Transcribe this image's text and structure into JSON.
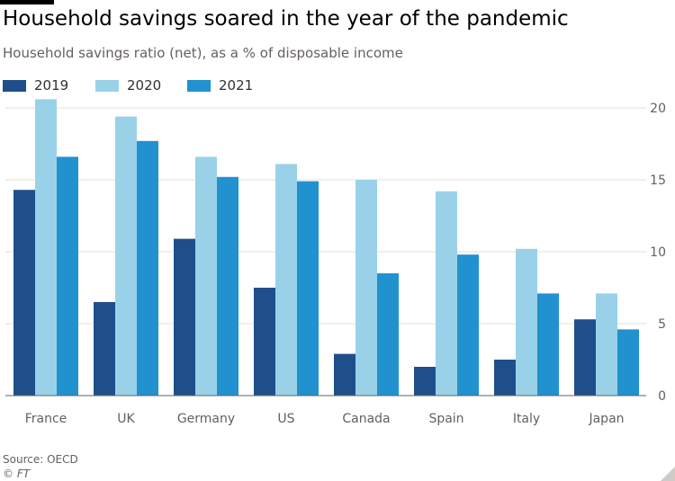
{
  "title": "Household savings soared in the year of the pandemic",
  "subtitle": "Household savings ratio (net), as a % of disposable income",
  "source": "Source: OECD",
  "credit": "© FT",
  "colors": {
    "2019": "#1f4f8b",
    "2020": "#99d2e8",
    "2021": "#2191d0",
    "grid": "#e9ded5",
    "axis": "#66605c"
  },
  "chart_data": {
    "type": "bar",
    "categories": [
      "France",
      "UK",
      "Germany",
      "US",
      "Canada",
      "Spain",
      "Italy",
      "Japan"
    ],
    "series": [
      {
        "name": "2019",
        "values": [
          14.3,
          6.5,
          10.9,
          7.5,
          2.9,
          2.0,
          2.5,
          5.3
        ]
      },
      {
        "name": "2020",
        "values": [
          20.6,
          19.4,
          16.6,
          16.1,
          15.0,
          14.2,
          10.2,
          7.1
        ]
      },
      {
        "name": "2021",
        "values": [
          16.6,
          17.7,
          15.2,
          14.9,
          8.5,
          9.8,
          7.1,
          4.6
        ]
      }
    ],
    "ylim": [
      0,
      20
    ],
    "yticks": [
      0,
      5,
      10,
      15,
      20
    ],
    "ylabel": "",
    "xlabel": "",
    "y_axis_side": "right",
    "grid": true,
    "legend": "top-left"
  }
}
